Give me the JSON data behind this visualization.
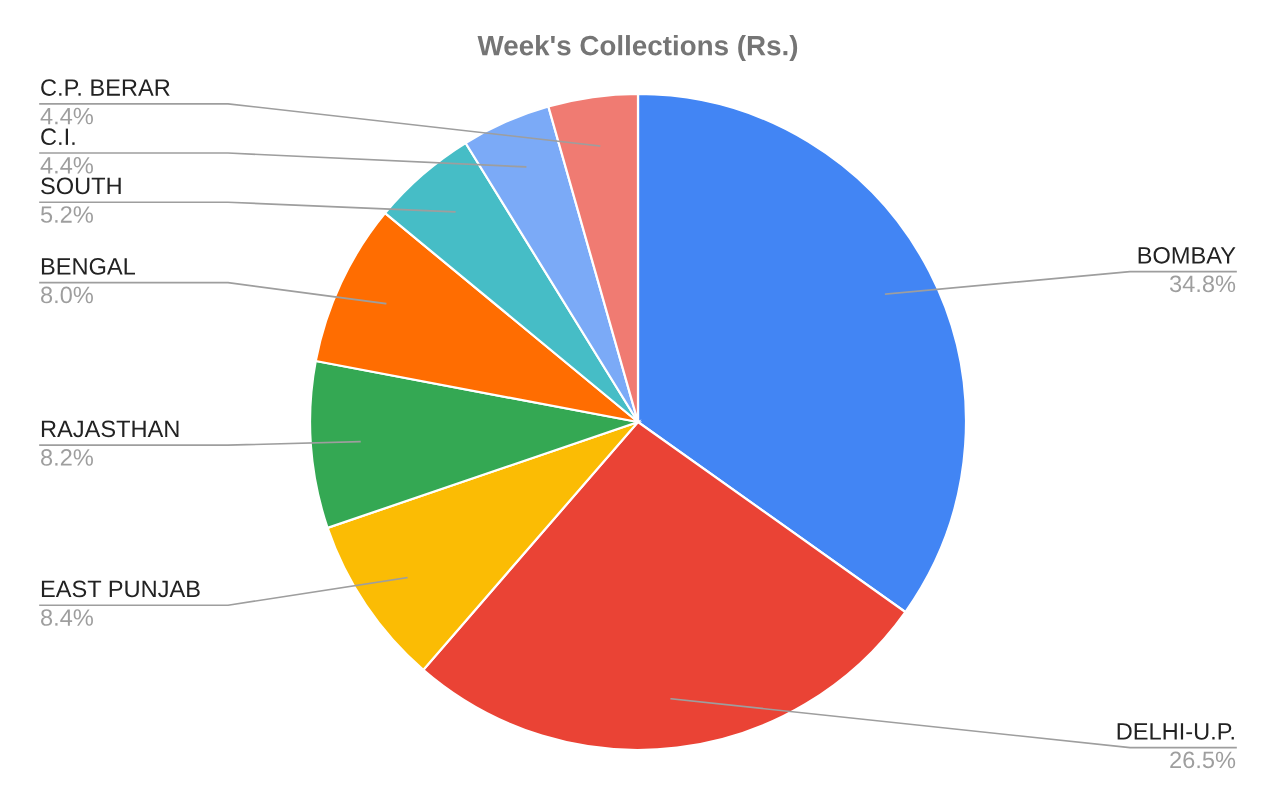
{
  "chart_data": {
    "type": "pie",
    "title": "Week's Collections (Rs.)",
    "categories": [
      "BOMBAY",
      "DELHI-U.P.",
      "EAST PUNJAB",
      "RAJASTHAN",
      "BENGAL",
      "SOUTH",
      "C.I.",
      "C.P. BERAR"
    ],
    "values": [
      34.8,
      26.5,
      8.4,
      8.2,
      8.0,
      5.2,
      4.4,
      4.4
    ],
    "value_labels": [
      "34.8%",
      "26.5%",
      "8.4%",
      "8.2%",
      "8.0%",
      "5.2%",
      "4.4%",
      "4.4%"
    ],
    "colors": [
      "#4285f4",
      "#ea4335",
      "#fbbc04",
      "#34a853",
      "#ff6d01",
      "#46bdc6",
      "#7baaf7",
      "#f07b72"
    ],
    "legend": false
  }
}
